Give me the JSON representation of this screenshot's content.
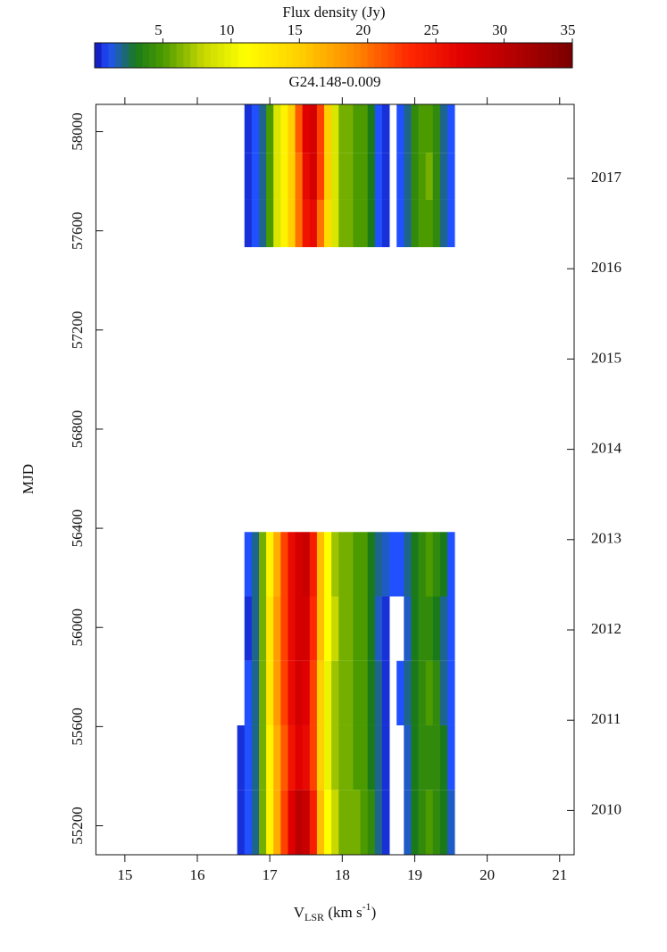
{
  "chart_data": {
    "type": "heatmap",
    "title": "G24.148-0.009",
    "colorbar_label": "Flux density (Jy)",
    "clim": [
      0,
      35
    ],
    "cticks": [
      5,
      10,
      15,
      20,
      25,
      30,
      35
    ],
    "colormap_values": [
      0,
      1,
      3,
      5,
      8,
      11,
      15,
      19,
      23,
      27,
      31,
      35
    ],
    "colormap": [
      "#1010b0",
      "#2050ff",
      "#1a7a1a",
      "#4a9a00",
      "#c8d800",
      "#ffff00",
      "#ffd000",
      "#ff8a00",
      "#ff2800",
      "#e00000",
      "#b00000",
      "#7a0000"
    ],
    "xlabel": {
      "main": "V",
      "sub": "LSR",
      "unit": " (km s",
      "sup": "-1",
      "end": ")"
    },
    "ylabel": "MJD",
    "xlim": [
      14.6,
      21.2
    ],
    "xticks": [
      15,
      16,
      17,
      18,
      19,
      20,
      21
    ],
    "ylim": [
      55083,
      58110
    ],
    "yticks": [
      55200,
      55600,
      56000,
      56400,
      56800,
      57200,
      57600,
      58000
    ],
    "y2lim": [
      2009.51,
      2017.82
    ],
    "y2ticks": [
      2010,
      2011,
      2012,
      2013,
      2014,
      2015,
      2016,
      2017
    ],
    "x": [
      16.6,
      16.7,
      16.8,
      16.9,
      17.0,
      17.1,
      17.2,
      17.3,
      17.4,
      17.5,
      17.6,
      17.7,
      17.8,
      17.9,
      18.0,
      18.1,
      18.2,
      18.3,
      18.4,
      18.5,
      18.6,
      18.7,
      18.8,
      18.9,
      19.0,
      19.1,
      19.2,
      19.3,
      19.4,
      19.5,
      19.6,
      19.7
    ],
    "rows": [
      {
        "mjd": [
          55083,
          55345
        ],
        "values": [
          0.5,
          1,
          2,
          6,
          12,
          17,
          22,
          27,
          30,
          29,
          24,
          16,
          11,
          8,
          6,
          6,
          6,
          5,
          4,
          2,
          0.5,
          0,
          0,
          1.5,
          3,
          4,
          5,
          4,
          3,
          1.5,
          0,
          0
        ]
      },
      {
        "mjd": [
          55345,
          55605
        ],
        "values": [
          0.5,
          1,
          2,
          6,
          12,
          17,
          21,
          25,
          27,
          26,
          22,
          15,
          10,
          7,
          6,
          6,
          5,
          5,
          3,
          2,
          0.5,
          0,
          0,
          1.5,
          3,
          4,
          4,
          4,
          3,
          1,
          0,
          0
        ]
      },
      {
        "mjd": [
          55605,
          55865
        ],
        "values": [
          0,
          1,
          2,
          6,
          13,
          18,
          22,
          26,
          28,
          27,
          22,
          15,
          10,
          7,
          6,
          6,
          5,
          5,
          3,
          2,
          0.5,
          0,
          1,
          2,
          3,
          4,
          5,
          4,
          2,
          1,
          0,
          0
        ]
      },
      {
        "mjd": [
          55865,
          56125
        ],
        "values": [
          0,
          0.5,
          2,
          6,
          13,
          18,
          22,
          26,
          28,
          28,
          23,
          16,
          11,
          8,
          6,
          6,
          5,
          5,
          3,
          1.5,
          0.5,
          0,
          0,
          1.5,
          3,
          4,
          4,
          3,
          2,
          1,
          0,
          0
        ]
      },
      {
        "mjd": [
          56125,
          56385
        ],
        "values": [
          0,
          1,
          2,
          6,
          12,
          17,
          22,
          26,
          28,
          29,
          24,
          16,
          11,
          7,
          6,
          6,
          5,
          5,
          3,
          2,
          1.5,
          1,
          1,
          2,
          3,
          4,
          5,
          4,
          3,
          1,
          0,
          0
        ]
      },
      {
        "mjd": [
          57534,
          57725
        ],
        "values": [
          0,
          0.5,
          1,
          2,
          5,
          9,
          12,
          15,
          20,
          25,
          26,
          20,
          14,
          9,
          6,
          6,
          5,
          5,
          3,
          1,
          0.5,
          0,
          1,
          2,
          4,
          5,
          5,
          4,
          2,
          1,
          0,
          0
        ]
      },
      {
        "mjd": [
          57725,
          57915
        ],
        "values": [
          0,
          0.5,
          1,
          2,
          5,
          9,
          12,
          15,
          20,
          26,
          28,
          22,
          15,
          9,
          6,
          6,
          5,
          5,
          3,
          1,
          0.5,
          0,
          1,
          2,
          4,
          5,
          6,
          4,
          2,
          1,
          0,
          0
        ]
      },
      {
        "mjd": [
          57915,
          58110
        ],
        "values": [
          0,
          0.5,
          1,
          2,
          5,
          9,
          12,
          15,
          21,
          27,
          28,
          22,
          15,
          9,
          6,
          6,
          5,
          5,
          3,
          1,
          0.5,
          0,
          1,
          2,
          4,
          5,
          5,
          4,
          2,
          1,
          0,
          0
        ]
      }
    ]
  }
}
